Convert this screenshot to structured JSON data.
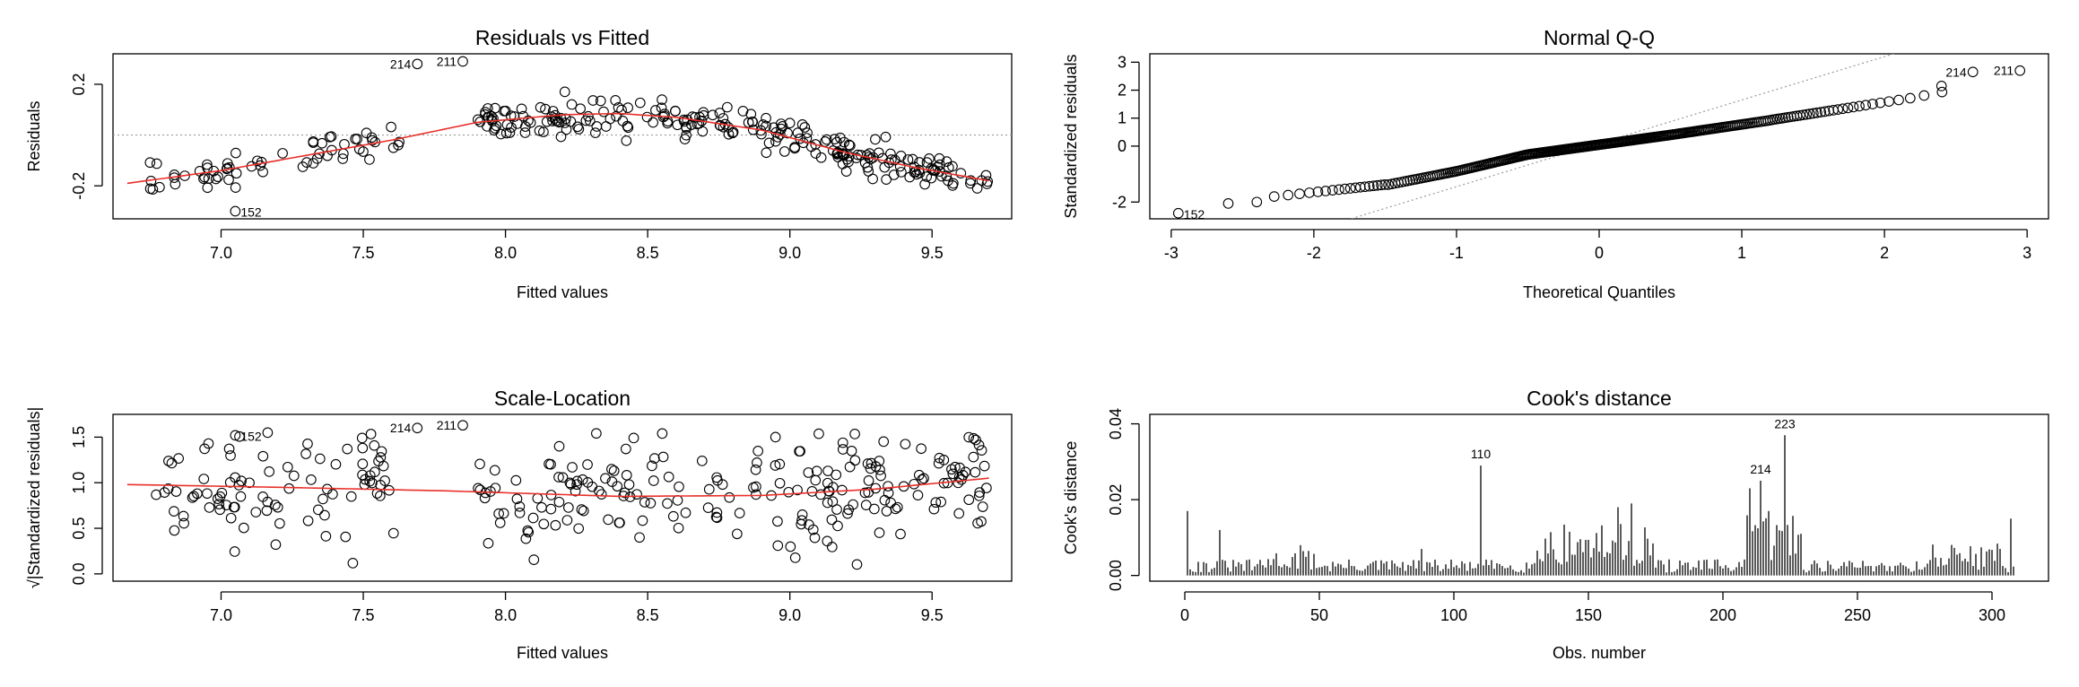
{
  "chart_data": [
    {
      "type": "scatter",
      "title": "Residuals vs Fitted",
      "xlabel": "Fitted values",
      "ylabel": "Residuals",
      "xlim": [
        6.62,
        9.78
      ],
      "ylim": [
        -0.33,
        0.32
      ],
      "xticks": [
        "7.0",
        "7.5",
        "8.0",
        "8.5",
        "9.0",
        "9.5"
      ],
      "xtick_values": [
        7.0,
        7.5,
        8.0,
        8.5,
        9.0,
        9.5
      ],
      "yticks": [
        "-0.2",
        "0.2"
      ],
      "ytick_values": [
        -0.2,
        0.2
      ],
      "ref_hline": 0,
      "smooth": {
        "x": [
          6.67,
          7.0,
          7.3,
          7.6,
          7.9,
          8.2,
          8.4,
          8.6,
          8.9,
          9.2,
          9.45,
          9.7
        ],
        "y": [
          -0.19,
          -0.14,
          -0.08,
          -0.02,
          0.05,
          0.08,
          0.085,
          0.07,
          0.02,
          -0.07,
          -0.13,
          -0.18
        ]
      },
      "labeled_points": [
        {
          "label": "214",
          "x": 7.69,
          "y": 0.28
        },
        {
          "label": "211",
          "x": 7.85,
          "y": 0.29
        },
        {
          "label": "152",
          "x": 7.05,
          "y": -0.3
        }
      ],
      "seed": 11
    },
    {
      "type": "scatter",
      "title": "Normal Q-Q",
      "xlabel": "Theoretical Quantiles",
      "ylabel": "Standardized residuals",
      "xlim": [
        -3.15,
        3.15
      ],
      "ylim": [
        -2.6,
        3.3
      ],
      "xticks": [
        "-3",
        "-2",
        "-1",
        "0",
        "1",
        "2",
        "3"
      ],
      "xtick_values": [
        -3,
        -2,
        -1,
        0,
        1,
        2,
        3
      ],
      "yticks": [
        "-2",
        "0",
        "1",
        "2",
        "3"
      ],
      "ytick_values": [
        -2,
        0,
        1,
        2,
        3
      ],
      "ref_line": {
        "slope": 1.55,
        "intercept": 0.1
      },
      "labeled_points": [
        {
          "label": "214",
          "x": 2.62,
          "y": 2.65
        },
        {
          "label": "211",
          "x": 2.95,
          "y": 2.7
        },
        {
          "label": "152",
          "x": -2.95,
          "y": -2.4
        }
      ],
      "seed": 5
    },
    {
      "type": "scatter",
      "title": "Scale-Location",
      "xlabel": "Fitted values",
      "ylabel": "√|Standardized residuals|",
      "xlim": [
        6.62,
        9.78
      ],
      "ylim": [
        -0.08,
        1.75
      ],
      "xticks": [
        "7.0",
        "7.5",
        "8.0",
        "8.5",
        "9.0",
        "9.5"
      ],
      "xtick_values": [
        7.0,
        7.5,
        8.0,
        8.5,
        9.0,
        9.5
      ],
      "yticks": [
        "0.0",
        "0.5",
        "1.0",
        "1.5"
      ],
      "ytick_values": [
        0.0,
        0.5,
        1.0,
        1.5
      ],
      "smooth": {
        "x": [
          6.67,
          7.2,
          7.8,
          8.4,
          8.9,
          9.3,
          9.7
        ],
        "y": [
          0.98,
          0.95,
          0.91,
          0.85,
          0.86,
          0.93,
          1.05
        ]
      },
      "labeled_points": [
        {
          "label": "152",
          "x": 7.05,
          "y": 1.52
        },
        {
          "label": "214",
          "x": 7.69,
          "y": 1.6
        },
        {
          "label": "211",
          "x": 7.85,
          "y": 1.63
        }
      ],
      "seed": 23
    },
    {
      "type": "bar",
      "title": "Cook's distance",
      "xlabel": "Obs. number",
      "ylabel": "Cook's distance",
      "xlim": [
        -13,
        321
      ],
      "ylim": [
        -0.0015,
        0.0425
      ],
      "xticks": [
        "0",
        "50",
        "100",
        "150",
        "200",
        "250",
        "300"
      ],
      "xtick_values": [
        0,
        50,
        100,
        150,
        200,
        250,
        300
      ],
      "yticks": [
        "0.00",
        "0.02",
        "0.04"
      ],
      "ytick_values": [
        0.0,
        0.02,
        0.04
      ],
      "n": 308,
      "highlights": [
        {
          "obs": 1,
          "value": 0.017
        },
        {
          "obs": 13,
          "value": 0.012
        },
        {
          "obs": 43,
          "value": 0.008
        },
        {
          "obs": 88,
          "value": 0.007
        },
        {
          "obs": 110,
          "value": 0.029
        },
        {
          "obs": 161,
          "value": 0.018
        },
        {
          "obs": 166,
          "value": 0.019
        },
        {
          "obs": 210,
          "value": 0.023
        },
        {
          "obs": 214,
          "value": 0.025
        },
        {
          "obs": 217,
          "value": 0.017
        },
        {
          "obs": 223,
          "value": 0.037
        },
        {
          "obs": 307,
          "value": 0.015
        }
      ],
      "labeled_points": [
        {
          "label": "110",
          "obs": 110,
          "value": 0.029
        },
        {
          "label": "214",
          "obs": 214,
          "value": 0.025
        },
        {
          "label": "223",
          "obs": 223,
          "value": 0.037
        }
      ],
      "seed": 31
    }
  ]
}
